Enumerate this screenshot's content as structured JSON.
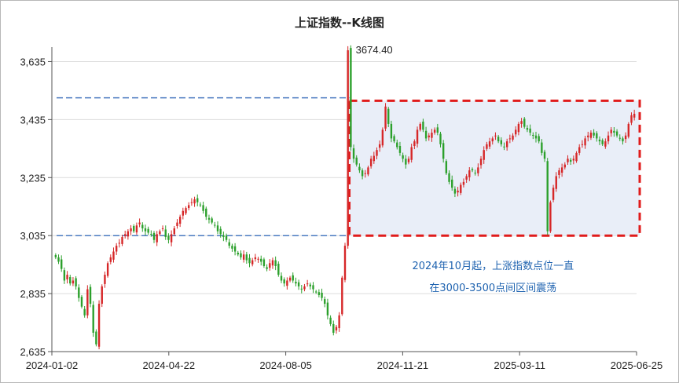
{
  "chart_data": {
    "type": "candlestick",
    "title": "上证指数--K线图",
    "ylim": [
      2635,
      3685
    ],
    "y_ticks": [
      2635,
      2835,
      3035,
      3235,
      3435,
      3635
    ],
    "y_tick_labels": [
      "2,635",
      "2,835",
      "3,035",
      "3,235",
      "3,435",
      "3,635"
    ],
    "x_tick_labels": [
      "2024-01-02",
      "2024-04-22",
      "2024-08-05",
      "2024-11-21",
      "2025-03-11",
      "2025-06-25"
    ],
    "peak_annotation": {
      "label": "3674.40",
      "value": 3674.4
    },
    "reference_lines": [
      {
        "value": 3510,
        "style": "dashed",
        "color": "#4a7ac0"
      },
      {
        "value": 3035,
        "style": "dashed",
        "color": "#4a7ac0"
      }
    ],
    "highlight_range": {
      "from": 3035,
      "to": 3500,
      "border_color": "#e01b1b",
      "fill_color": "#e9eef8"
    },
    "annotation_text": [
      "2024年10月起，上涨指数点位一直",
      "在3000-3500点间区间震荡"
    ],
    "up_color": "#d62728",
    "down_color": "#2ca02c",
    "closes": [
      2960,
      2945,
      2920,
      2880,
      2900,
      2870,
      2880,
      2860,
      2820,
      2790,
      2760,
      2850,
      2800,
      2700,
      2660,
      2800,
      2860,
      2900,
      2940,
      2960,
      2980,
      3000,
      3010,
      3030,
      3040,
      3050,
      3060,
      3050,
      3070,
      3080,
      3060,
      3050,
      3045,
      3040,
      3020,
      3040,
      3050,
      3060,
      3030,
      3020,
      3040,
      3060,
      3080,
      3100,
      3120,
      3130,
      3140,
      3150,
      3160,
      3150,
      3140,
      3120,
      3100,
      3090,
      3080,
      3070,
      3050,
      3040,
      3030,
      3020,
      3000,
      2990,
      2980,
      2970,
      2960,
      2970,
      2950,
      2940,
      2950,
      2960,
      2955,
      2945,
      2930,
      2920,
      2940,
      2950,
      2930,
      2900,
      2880,
      2870,
      2880,
      2890,
      2880,
      2870,
      2860,
      2850,
      2860,
      2870,
      2860,
      2850,
      2840,
      2830,
      2820,
      2800,
      2760,
      2730,
      2700,
      2720,
      2760,
      2890,
      3000,
      3674,
      3340,
      3300,
      3280,
      3260,
      3240,
      3250,
      3270,
      3300,
      3310,
      3330,
      3350,
      3400,
      3480,
      3420,
      3370,
      3360,
      3340,
      3320,
      3300,
      3280,
      3300,
      3340,
      3360,
      3400,
      3420,
      3400,
      3370,
      3380,
      3390,
      3400,
      3390,
      3350,
      3300,
      3250,
      3220,
      3200,
      3180,
      3190,
      3210,
      3220,
      3240,
      3260,
      3260,
      3250,
      3270,
      3300,
      3330,
      3350,
      3360,
      3370,
      3380,
      3360,
      3350,
      3340,
      3360,
      3370,
      3380,
      3400,
      3420,
      3430,
      3410,
      3400,
      3390,
      3380,
      3370,
      3360,
      3320,
      3300,
      3050,
      3150,
      3200,
      3240,
      3260,
      3270,
      3280,
      3300,
      3290,
      3300,
      3320,
      3340,
      3350,
      3370,
      3380,
      3390,
      3380,
      3370,
      3360,
      3350,
      3360,
      3380,
      3400,
      3390,
      3380,
      3370,
      3360,
      3380,
      3420,
      3450,
      3455
    ]
  }
}
